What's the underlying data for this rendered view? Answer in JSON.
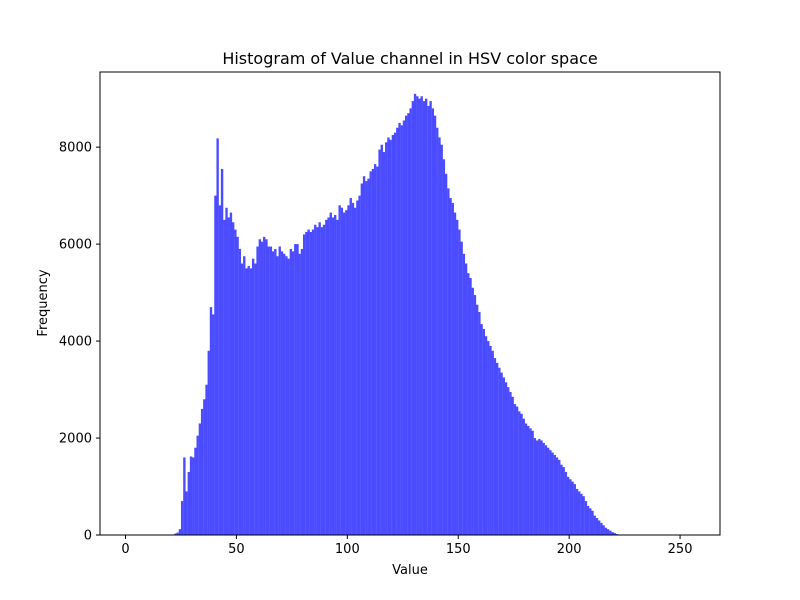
{
  "chart_data": {
    "type": "bar",
    "title": "Histogram of Value channel in HSV color space",
    "xlabel": "Value",
    "ylabel": "Frequency",
    "xlim": [
      -11.5,
      268
    ],
    "ylim": [
      0,
      9550
    ],
    "xticks": [
      0,
      50,
      100,
      150,
      200,
      250
    ],
    "yticks": [
      0,
      2000,
      4000,
      6000,
      8000
    ],
    "grid": false,
    "bar_color": "#4b4bff",
    "series": [
      {
        "bin_start": 0,
        "bin_width": 1,
        "values": [
          0,
          0,
          0,
          0,
          0,
          0,
          0,
          0,
          0,
          0,
          0,
          0,
          0,
          0,
          0,
          0,
          0,
          0,
          0,
          0,
          0,
          0,
          30,
          50,
          120,
          700,
          1600,
          900,
          1300,
          1620,
          1600,
          1800,
          2050,
          2300,
          2600,
          2800,
          3100,
          3800,
          4700,
          4550,
          7000,
          8180,
          6800,
          7550,
          6500,
          6750,
          6550,
          6650,
          6450,
          6300,
          6150,
          5900,
          5600,
          5750,
          5500,
          5550,
          5500,
          5700,
          5600,
          5950,
          6100,
          6050,
          6150,
          6100,
          5950,
          5950,
          5850,
          5900,
          5750,
          5950,
          5850,
          5800,
          5750,
          5700,
          5900,
          5850,
          6000,
          6000,
          5800,
          5900,
          6200,
          6250,
          6300,
          6250,
          6300,
          6400,
          6350,
          6450,
          6350,
          6400,
          6500,
          6550,
          6650,
          6550,
          6600,
          6500,
          6800,
          6750,
          6650,
          6700,
          6800,
          6950,
          6850,
          6750,
          6900,
          7000,
          7250,
          7400,
          7300,
          7350,
          7500,
          7550,
          7650,
          7600,
          7950,
          8050,
          7900,
          8100,
          8200,
          8150,
          8250,
          8300,
          8400,
          8500,
          8450,
          8550,
          8650,
          8700,
          8800,
          8950,
          9100,
          9050,
          9000,
          9050,
          8950,
          9000,
          8850,
          8950,
          8800,
          8650,
          8400,
          8200,
          8050,
          7750,
          7450,
          7150,
          6950,
          6850,
          6650,
          6500,
          6300,
          6050,
          5800,
          5600,
          5400,
          5300,
          5100,
          4950,
          4750,
          4600,
          4350,
          4250,
          4100,
          4000,
          3900,
          3800,
          3650,
          3550,
          3450,
          3350,
          3250,
          3150,
          3050,
          2950,
          2850,
          2700,
          2650,
          2550,
          2500,
          2400,
          2300,
          2250,
          2200,
          2150,
          2000,
          1950,
          1980,
          1950,
          1900,
          1850,
          1800,
          1750,
          1700,
          1650,
          1600,
          1550,
          1450,
          1400,
          1300,
          1200,
          1150,
          1100,
          1050,
          950,
          900,
          850,
          800,
          700,
          600,
          550,
          500,
          400,
          350,
          300,
          250,
          200,
          150,
          120,
          90,
          60,
          40,
          20,
          10,
          0,
          0,
          0,
          0,
          0,
          0,
          0,
          0,
          0,
          0
        ]
      }
    ]
  }
}
